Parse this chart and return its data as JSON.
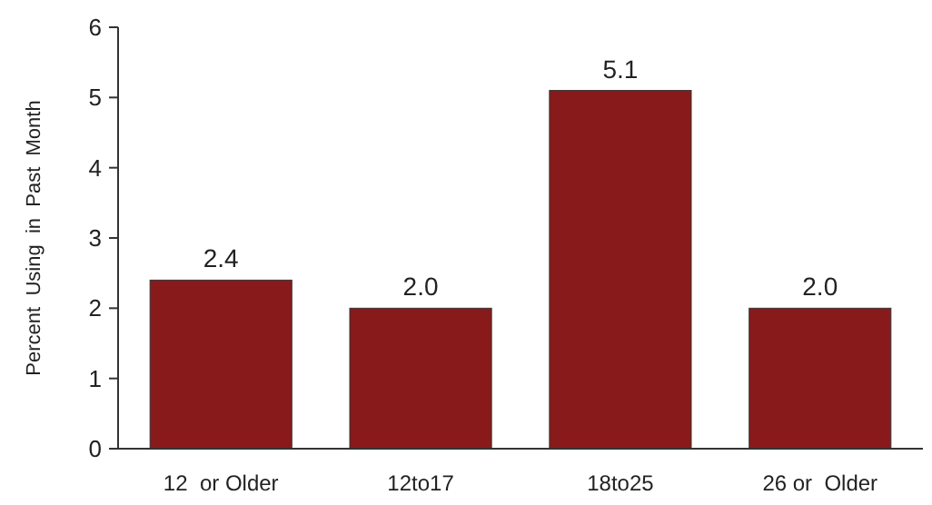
{
  "chart_data": {
    "type": "bar",
    "ylabel": "Percent  Using  in  Past  Month",
    "categories": [
      "12  or Older",
      "12to17",
      "18to25",
      "26 or  Older"
    ],
    "values": [
      2.4,
      2.0,
      5.1,
      2.0
    ],
    "value_labels": [
      "2.4",
      "2.0",
      "5.1",
      "2.0"
    ],
    "color": "#881a1c",
    "ylim": [
      0,
      6
    ],
    "yticks": [
      0,
      1,
      2,
      3,
      4,
      5,
      6
    ],
    "grid": false
  }
}
